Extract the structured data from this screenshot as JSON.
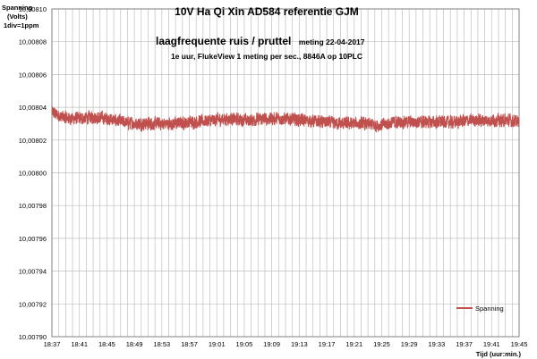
{
  "chart_data": {
    "type": "line",
    "title": "10V Ha Qi Xin AD584 referentie GJM",
    "subtitle_bold": "laagfrequente ruis / pruttel",
    "subtitle_date": "meting 22-04-2017",
    "subtitle2": "1e uur,  FlukeView 1 meting per sec., 8846A op 10PLC",
    "ylabel_lines": [
      "Spanning",
      "(Volts)",
      "1div=1ppm"
    ],
    "xlabel": "Tijd (uur:min.)",
    "ylim": [
      10.0079,
      10.0081
    ],
    "y_ticks": [
      "10,00790",
      "10,00792",
      "10,00794",
      "10,00796",
      "10,00798",
      "10,00800",
      "10,00802",
      "10,00804",
      "10,00806",
      "10,00808",
      "10,00810"
    ],
    "x_ticks": [
      "18:37",
      "18:41",
      "18:45",
      "18:49",
      "18:53",
      "18:57",
      "19:01",
      "19:05",
      "19:09",
      "19:13",
      "19:17",
      "19:21",
      "19:25",
      "19:29",
      "19:33",
      "19:37",
      "19:41",
      "19:45"
    ],
    "x_minor_per_major": 4,
    "grid": true,
    "legend_position": "bottom-right",
    "series": [
      {
        "name": "Spanning",
        "color": "#c0504d",
        "x_start": "18:37",
        "x_end": "19:45",
        "mean": 10.008032,
        "approx_range": [
          10.008017,
          10.008047
        ],
        "envelope": [
          [
            0.0,
            10.008037
          ],
          [
            0.02,
            10.008034
          ],
          [
            0.05,
            10.008033
          ],
          [
            0.09,
            10.008034
          ],
          [
            0.12,
            10.008033
          ],
          [
            0.15,
            10.008031
          ],
          [
            0.18,
            10.00803
          ],
          [
            0.22,
            10.00803
          ],
          [
            0.26,
            10.00803
          ],
          [
            0.3,
            10.008031
          ],
          [
            0.34,
            10.008032
          ],
          [
            0.38,
            10.008033
          ],
          [
            0.42,
            10.008032
          ],
          [
            0.46,
            10.008033
          ],
          [
            0.5,
            10.008033
          ],
          [
            0.54,
            10.008032
          ],
          [
            0.58,
            10.008031
          ],
          [
            0.62,
            10.00803
          ],
          [
            0.66,
            10.00803
          ],
          [
            0.7,
            10.008029
          ],
          [
            0.74,
            10.008031
          ],
          [
            0.78,
            10.008031
          ],
          [
            0.82,
            10.008031
          ],
          [
            0.86,
            10.008031
          ],
          [
            0.9,
            10.008032
          ],
          [
            0.94,
            10.008032
          ],
          [
            0.98,
            10.008032
          ],
          [
            1.0,
            10.008031
          ]
        ]
      }
    ]
  }
}
